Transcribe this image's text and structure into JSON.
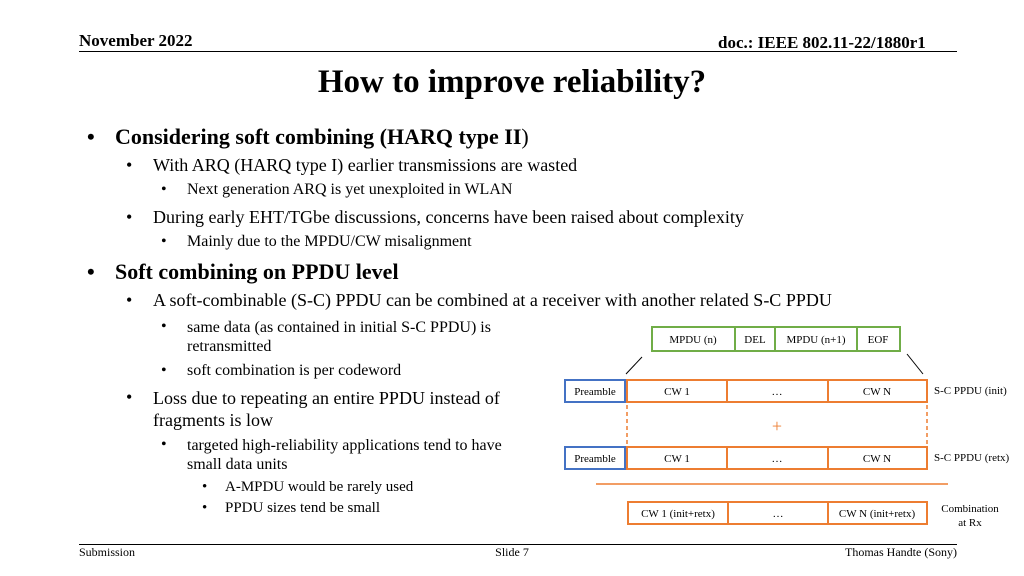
{
  "header": {
    "date": "November 2022",
    "doc_id": "doc.: IEEE 802.11-22/1880r1"
  },
  "title": "How to improve reliability?",
  "bullets": [
    {
      "text_main": "Considering soft combining (HARQ type II",
      "text_paren": ")"
    },
    {
      "text": "With ARQ (HARQ type I) earlier transmissions are wasted"
    },
    {
      "text": "Next generation ARQ is yet unexploited in WLAN"
    },
    {
      "text": "During early EHT/TGbe discussions, concerns have been raised about complexity"
    },
    {
      "text": "Mainly due to the MPDU/CW misalignment"
    },
    {
      "text": "Soft combining on PPDU level"
    },
    {
      "text": "A soft-combinable (S-C) PPDU can be combined at a receiver with another related S-C PPDU"
    },
    {
      "line1": "same data (as contained in initial S-C PPDU) is",
      "line2": "retransmitted"
    },
    {
      "text": "soft combination is per codeword"
    },
    {
      "line1": "Loss due to repeating an entire PPDU instead of",
      "line2": "fragments is low"
    },
    {
      "line1": "targeted high-reliability applications tend to have",
      "line2": "small data units"
    },
    {
      "text": "A-MPDU would be rarely used"
    },
    {
      "text": "PPDU sizes tend be small"
    }
  ],
  "diagram": {
    "mpdu_n": "MPDU (n)",
    "del": "DEL",
    "mpdu_n1": "MPDU (n+1)",
    "eof": "EOF",
    "preamble": "Preamble",
    "cw1": "CW 1",
    "ellipsis": "…",
    "cwn": "CW N",
    "sc_init": "S-C PPDU (init)",
    "plus": "+",
    "sc_retx": "S-C PPDU (retx)",
    "cw1_comb": "CW 1 (init+retx)",
    "cwn_comb": "CW N (init+retx)",
    "comb_line1": "Combination",
    "comb_line2": "at Rx",
    "colors": {
      "green": "#70ad47",
      "orange": "#ed7d31",
      "blue": "#4472c4"
    }
  },
  "footer": {
    "left": "Submission",
    "center": "Slide 7",
    "right": "Thomas Handte (Sony)"
  }
}
